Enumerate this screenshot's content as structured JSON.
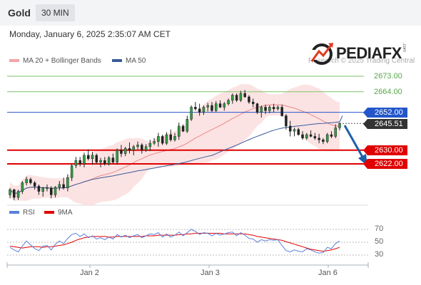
{
  "header": {
    "symbol": "Gold",
    "timeframe": "30 MIN"
  },
  "datetime": "Monday, January 6, 2025 2:35:07 AM CET",
  "brand": {
    "name": "PEDIAFX",
    "suffix": ".com",
    "copyright": "Research © 2025 Trading Central"
  },
  "legend": {
    "ma20_bb": "MA 20 + Bollinger Bands",
    "ma50": "MA 50"
  },
  "rsi_legend": {
    "rsi": "RSI",
    "ma9": "9MA"
  },
  "price_levels": [
    {
      "label": "2673.00",
      "style": "green-text"
    },
    {
      "label": "2664.00",
      "style": "green-text"
    },
    {
      "label": "2652.00",
      "style": "blue-tag"
    },
    {
      "label": "2645.51",
      "style": "dark-tag"
    },
    {
      "label": "2630.00",
      "style": "red-tag"
    },
    {
      "label": "2622.00",
      "style": "red-tag"
    }
  ],
  "rsi_levels": [
    "70",
    "50",
    "30"
  ],
  "x_axis": [
    "Jan 2",
    "Jan 3",
    "Jan 6"
  ],
  "colors": {
    "green": "#7cc36a",
    "blue": "#2456c9",
    "red": "#e00000",
    "dark": "#333333",
    "ma20": "#e8898b",
    "ma50": "#3a5a9a",
    "rsi": "#5b7fdb",
    "rsi_ma": "#e00000"
  },
  "chart_data": {
    "type": "candlestick",
    "title": "Gold 30 MIN",
    "ylim": [
      2595,
      2685
    ],
    "current_price": 2645.51,
    "resistance": [
      2652.0,
      2664.0,
      2673.0
    ],
    "support": [
      2630.0,
      2622.0
    ],
    "forecast": "down",
    "candles": [
      [
        2604.0,
        2608.0,
        2602.0,
        2607.0
      ],
      [
        2607.0,
        2607.5,
        2601.0,
        2602.5
      ],
      [
        2602.5,
        2607.0,
        2601.0,
        2606.0
      ],
      [
        2606.0,
        2612.0,
        2604.5,
        2611.0
      ],
      [
        2611.0,
        2614.5,
        2609.5,
        2613.0
      ],
      [
        2613.0,
        2614.0,
        2610.0,
        2611.0
      ],
      [
        2611.0,
        2612.0,
        2607.0,
        2609.0
      ],
      [
        2609.0,
        2610.0,
        2604.0,
        2606.0
      ],
      [
        2606.0,
        2608.5,
        2603.0,
        2608.0
      ],
      [
        2608.0,
        2610.0,
        2606.0,
        2608.0
      ],
      [
        2608.0,
        2609.0,
        2602.0,
        2604.0
      ],
      [
        2604.0,
        2609.0,
        2602.5,
        2608.5
      ],
      [
        2608.5,
        2612.0,
        2606.5,
        2610.0
      ],
      [
        2610.0,
        2614.0,
        2607.0,
        2608.0
      ],
      [
        2608.0,
        2616.0,
        2606.0,
        2614.0
      ],
      [
        2614.0,
        2622.0,
        2612.0,
        2621.0
      ],
      [
        2621.0,
        2626.0,
        2619.5,
        2624.0
      ],
      [
        2624.0,
        2626.0,
        2620.5,
        2622.0
      ],
      [
        2622.0,
        2628.5,
        2620.0,
        2627.0
      ],
      [
        2627.0,
        2630.5,
        2624.0,
        2625.0
      ],
      [
        2625.0,
        2629.0,
        2621.5,
        2627.0
      ],
      [
        2627.0,
        2628.0,
        2622.0,
        2623.0
      ],
      [
        2623.0,
        2625.5,
        2620.0,
        2624.0
      ],
      [
        2624.0,
        2626.0,
        2621.0,
        2622.0
      ],
      [
        2622.0,
        2626.5,
        2621.0,
        2625.5
      ],
      [
        2625.5,
        2628.0,
        2622.0,
        2623.0
      ],
      [
        2623.0,
        2631.0,
        2621.5,
        2630.0
      ],
      [
        2630.0,
        2633.0,
        2626.0,
        2628.0
      ],
      [
        2628.0,
        2632.0,
        2626.5,
        2631.0
      ],
      [
        2631.0,
        2634.5,
        2628.0,
        2630.0
      ],
      [
        2630.0,
        2633.0,
        2627.0,
        2632.0
      ],
      [
        2632.0,
        2635.0,
        2630.5,
        2633.0
      ],
      [
        2633.0,
        2634.0,
        2628.0,
        2630.0
      ],
      [
        2630.0,
        2633.5,
        2629.0,
        2632.0
      ],
      [
        2632.0,
        2636.0,
        2629.5,
        2634.0
      ],
      [
        2634.0,
        2637.0,
        2633.0,
        2635.0
      ],
      [
        2635.0,
        2640.0,
        2632.0,
        2638.0
      ],
      [
        2638.0,
        2639.0,
        2633.0,
        2634.0
      ],
      [
        2634.0,
        2640.5,
        2633.0,
        2639.0
      ],
      [
        2639.0,
        2642.0,
        2635.0,
        2636.0
      ],
      [
        2636.0,
        2640.0,
        2635.0,
        2638.0
      ],
      [
        2638.0,
        2646.0,
        2636.0,
        2644.0
      ],
      [
        2644.0,
        2645.0,
        2640.5,
        2641.0
      ],
      [
        2641.0,
        2650.0,
        2640.0,
        2648.0
      ],
      [
        2648.0,
        2656.0,
        2647.0,
        2655.0
      ],
      [
        2655.0,
        2658.0,
        2653.0,
        2654.0
      ],
      [
        2654.0,
        2657.0,
        2650.0,
        2652.0
      ],
      [
        2652.0,
        2656.0,
        2650.5,
        2655.0
      ],
      [
        2655.0,
        2657.5,
        2652.5,
        2656.0
      ],
      [
        2656.0,
        2658.0,
        2652.0,
        2653.0
      ],
      [
        2653.0,
        2658.5,
        2652.0,
        2657.0
      ],
      [
        2657.0,
        2659.0,
        2654.5,
        2655.0
      ],
      [
        2655.0,
        2658.0,
        2653.0,
        2657.0
      ],
      [
        2657.0,
        2660.0,
        2656.0,
        2659.0
      ],
      [
        2659.0,
        2663.0,
        2657.0,
        2662.0
      ],
      [
        2662.0,
        2663.0,
        2658.0,
        2659.0
      ],
      [
        2659.0,
        2664.5,
        2658.0,
        2663.0
      ],
      [
        2663.0,
        2665.0,
        2660.5,
        2661.0
      ],
      [
        2661.0,
        2662.0,
        2657.0,
        2658.0
      ],
      [
        2658.0,
        2660.0,
        2655.0,
        2657.0
      ],
      [
        2657.0,
        2657.5,
        2651.0,
        2652.0
      ],
      [
        2652.0,
        2656.0,
        2649.0,
        2655.0
      ],
      [
        2655.0,
        2656.5,
        2651.0,
        2653.0
      ],
      [
        2653.0,
        2656.0,
        2651.5,
        2655.0
      ],
      [
        2655.0,
        2657.0,
        2652.0,
        2654.0
      ],
      [
        2654.0,
        2656.0,
        2653.0,
        2655.0
      ],
      [
        2655.0,
        2656.5,
        2649.5,
        2650.0
      ],
      [
        2650.0,
        2651.0,
        2642.0,
        2644.0
      ],
      [
        2644.0,
        2647.0,
        2638.0,
        2641.0
      ],
      [
        2641.0,
        2643.0,
        2638.0,
        2642.0
      ],
      [
        2642.0,
        2643.0,
        2638.5,
        2639.0
      ],
      [
        2639.0,
        2641.0,
        2636.0,
        2637.0
      ],
      [
        2637.0,
        2640.0,
        2636.0,
        2639.0
      ],
      [
        2639.0,
        2641.5,
        2637.5,
        2638.0
      ],
      [
        2638.0,
        2640.0,
        2636.0,
        2637.0
      ],
      [
        2637.0,
        2639.5,
        2634.0,
        2636.0
      ],
      [
        2636.0,
        2637.0,
        2633.5,
        2635.0
      ],
      [
        2635.0,
        2640.0,
        2634.0,
        2639.0
      ],
      [
        2639.0,
        2641.0,
        2637.0,
        2638.0
      ],
      [
        2638.0,
        2645.0,
        2637.0,
        2643.0
      ],
      [
        2643.0,
        2646.0,
        2641.5,
        2645.5
      ]
    ],
    "rsi": {
      "levels": [
        70,
        50,
        30
      ],
      "ylim": [
        20,
        80
      ],
      "values": [
        42,
        38,
        35,
        44,
        52,
        46,
        40,
        37,
        44,
        45,
        38,
        47,
        52,
        48,
        56,
        62,
        64,
        59,
        63,
        57,
        60,
        55,
        57,
        54,
        58,
        55,
        62,
        58,
        61,
        57,
        60,
        62,
        57,
        60,
        63,
        62,
        65,
        58,
        63,
        58,
        61,
        66,
        60,
        65,
        70,
        67,
        62,
        65,
        64,
        60,
        64,
        61,
        63,
        65,
        66,
        60,
        65,
        61,
        56,
        55,
        50,
        54,
        52,
        54,
        53,
        54,
        45,
        37,
        35,
        38,
        36,
        35,
        40,
        38,
        35,
        33,
        34,
        42,
        40,
        48,
        52
      ],
      "ma9": [
        44,
        43,
        42,
        41,
        42,
        43,
        43,
        43,
        42,
        43,
        43,
        44,
        45,
        46,
        48,
        50,
        53,
        55,
        57,
        58,
        59,
        59,
        59,
        59,
        58,
        58,
        59,
        59,
        59,
        59,
        59,
        59,
        59,
        60,
        60,
        60,
        61,
        61,
        61,
        61,
        61,
        62,
        62,
        63,
        63,
        64,
        64,
        64,
        64,
        64,
        64,
        64,
        63,
        63,
        63,
        63,
        63,
        63,
        62,
        61,
        59,
        58,
        57,
        56,
        55,
        54,
        53,
        51,
        49,
        47,
        45,
        43,
        41,
        39,
        38,
        37,
        36,
        37,
        38,
        40,
        42
      ]
    }
  }
}
